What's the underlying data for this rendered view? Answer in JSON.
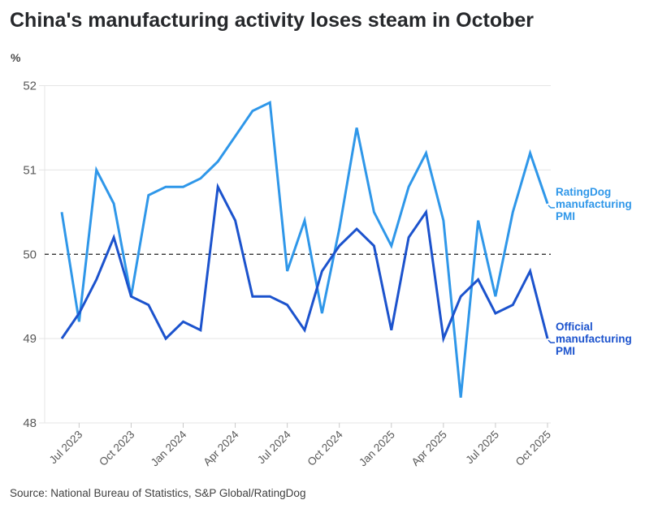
{
  "title": "China's manufacturing activity loses steam in October",
  "unit_label": "%",
  "source": "Source: National Bureau of Statistics, S&P Global/RatingDog",
  "colors": {
    "ratingdog_blue": "#2f97e9",
    "official_blue": "#1c53cd",
    "title_text": "#26282b",
    "axis_text": "#585858",
    "gridline": "#e5e5e5",
    "reference_line": "#1f1f1f",
    "source_text": "#3f3f3f"
  },
  "chart_data": {
    "type": "line",
    "x": [
      "Jun 2023",
      "Jul 2023",
      "Aug 2023",
      "Sep 2023",
      "Oct 2023",
      "Nov 2023",
      "Dec 2023",
      "Jan 2024",
      "Feb 2024",
      "Mar 2024",
      "Apr 2024",
      "May 2024",
      "Jun 2024",
      "Jul 2024",
      "Aug 2024",
      "Sep 2024",
      "Oct 2024",
      "Nov 2024",
      "Dec 2024",
      "Jan 2025",
      "Feb 2025",
      "Mar 2025",
      "Apr 2025",
      "May 2025",
      "Jun 2025",
      "Jul 2025",
      "Aug 2025",
      "Sep 2025",
      "Oct 2025"
    ],
    "series": [
      {
        "name": "RatingDog manufacturing PMI",
        "color": "#2f97e9",
        "values": [
          50.5,
          49.2,
          51.0,
          50.6,
          49.5,
          50.7,
          50.8,
          50.8,
          50.9,
          51.1,
          51.4,
          51.7,
          51.8,
          49.8,
          50.4,
          49.3,
          50.3,
          51.5,
          50.5,
          50.1,
          50.8,
          51.2,
          50.4,
          48.3,
          50.4,
          49.5,
          50.5,
          51.2,
          50.6
        ]
      },
      {
        "name": "Official manufacturing PMI",
        "color": "#1c53cd",
        "values": [
          49.0,
          49.3,
          49.7,
          50.2,
          49.5,
          49.4,
          49.0,
          49.2,
          49.1,
          50.8,
          50.4,
          49.5,
          49.5,
          49.4,
          49.1,
          49.8,
          50.1,
          50.3,
          50.1,
          49.1,
          50.2,
          50.5,
          49.0,
          49.5,
          49.7,
          49.3,
          49.4,
          49.8,
          49.0
        ]
      }
    ],
    "x_tick_labels": [
      "Jul 2023",
      "Oct 2023",
      "Jan 2024",
      "Apr 2024",
      "Jul 2024",
      "Oct 2024",
      "Jan 2025",
      "Apr 2025",
      "Jul 2025",
      "Oct 2025"
    ],
    "x_tick_indices": [
      1,
      4,
      7,
      10,
      13,
      16,
      19,
      22,
      25,
      28
    ],
    "y_ticks": [
      48,
      49,
      50,
      51,
      52
    ],
    "ylabel": "%",
    "ylim": [
      48,
      52.2
    ],
    "reference_line": 50,
    "grid": true,
    "legend_position": "right-end-labels"
  }
}
